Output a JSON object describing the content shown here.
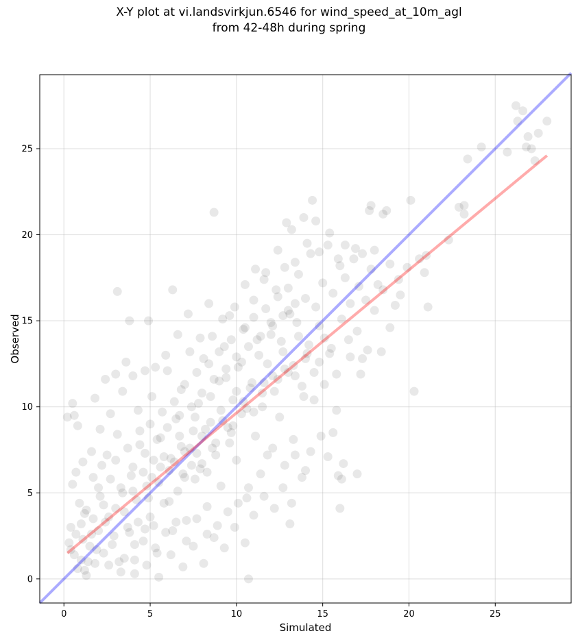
{
  "chart_data": {
    "type": "scatter",
    "title_line1": "X-Y plot at vi.landsvirkjun.6546 for wind_speed_at_10m_agl",
    "title_line2": "from 42-48h during spring",
    "xlabel": "Simulated",
    "ylabel": "Observed",
    "xlim": [
      -1.4,
      29.4
    ],
    "ylim": [
      -1.4,
      29.3
    ],
    "xticks": [
      0,
      5,
      10,
      15,
      20,
      25
    ],
    "yticks": [
      0,
      5,
      10,
      15,
      20,
      25
    ],
    "grid": true,
    "colors": {
      "points": "#000000",
      "identity_line": "#0000ff",
      "fit_line": "#ff0000",
      "grid": "#b0b0b0"
    },
    "reference_lines": [
      {
        "role": "identity",
        "x": [
          -1.4,
          29.4
        ],
        "y": [
          -1.4,
          29.4
        ],
        "color": "#0000ff"
      },
      {
        "role": "regression",
        "x": [
          0.2,
          28
        ],
        "y": [
          1.5,
          24.6
        ],
        "color": "#ff0000"
      }
    ],
    "points": [
      [
        0.2,
        9.4
      ],
      [
        0.5,
        10.2
      ],
      [
        0.6,
        9.5
      ],
      [
        3.1,
        16.7
      ],
      [
        3.8,
        15.0
      ],
      [
        8.7,
        21.3
      ],
      [
        10.7,
        0.0
      ],
      [
        14.4,
        22.0
      ],
      [
        16.0,
        4.1
      ],
      [
        17.0,
        6.1
      ],
      [
        20.3,
        10.9
      ],
      [
        16.2,
        6.7
      ],
      [
        15.6,
        8.5
      ],
      [
        15.8,
        9.8
      ],
      [
        13.1,
        3.2
      ],
      [
        26.2,
        27.5
      ],
      [
        26.6,
        27.2
      ],
      [
        26.3,
        26.6
      ],
      [
        26.9,
        25.7
      ],
      [
        27.5,
        25.9
      ],
      [
        28.0,
        26.6
      ],
      [
        26.8,
        25.1
      ],
      [
        27.1,
        25.0
      ],
      [
        27.3,
        24.3
      ],
      [
        25.7,
        24.8
      ],
      [
        24.2,
        25.1
      ],
      [
        23.4,
        24.4
      ],
      [
        23.2,
        21.7
      ],
      [
        22.9,
        21.6
      ],
      [
        23.2,
        21.2
      ],
      [
        22.3,
        19.7
      ],
      [
        20.1,
        22.0
      ],
      [
        21.1,
        15.8
      ],
      [
        20.9,
        17.8
      ],
      [
        18.7,
        21.4
      ],
      [
        18.5,
        21.2
      ],
      [
        17.8,
        21.7
      ],
      [
        17.7,
        21.4
      ],
      [
        19.5,
        16.5
      ],
      [
        19.2,
        15.9
      ],
      [
        18.9,
        14.6
      ],
      [
        18.4,
        13.2
      ],
      [
        18.0,
        19.1
      ],
      [
        17.3,
        18.9
      ],
      [
        16.9,
        19.2
      ],
      [
        16.3,
        19.4
      ],
      [
        15.9,
        18.6
      ],
      [
        15.4,
        20.1
      ],
      [
        13.9,
        21.0
      ],
      [
        14.6,
        20.8
      ],
      [
        14.1,
        19.5
      ],
      [
        0.3,
        2.1
      ],
      [
        0.6,
        1.4
      ],
      [
        0.4,
        3.0
      ],
      [
        0.8,
        0.6
      ],
      [
        1.1,
        2.3
      ],
      [
        1.4,
        1.0
      ],
      [
        1.2,
        3.8
      ],
      [
        0.9,
        4.4
      ],
      [
        0.5,
        5.5
      ],
      [
        0.7,
        6.2
      ],
      [
        1.3,
        0.2
      ],
      [
        1.6,
        2.6
      ],
      [
        1.9,
        1.7
      ],
      [
        2.1,
        4.8
      ],
      [
        1.7,
        5.9
      ],
      [
        2.4,
        3.3
      ],
      [
        2.6,
        0.8
      ],
      [
        2.2,
        6.6
      ],
      [
        2.8,
        2.0
      ],
      [
        3.0,
        4.1
      ],
      [
        2.5,
        7.2
      ],
      [
        3.3,
        5.3
      ],
      [
        3.5,
        1.2
      ],
      [
        3.1,
        8.4
      ],
      [
        3.7,
        3.0
      ],
      [
        3.9,
        6.0
      ],
      [
        4.1,
        0.3
      ],
      [
        4.2,
        4.6
      ],
      [
        4.4,
        7.8
      ],
      [
        4.6,
        2.2
      ],
      [
        4.8,
        5.4
      ],
      [
        4.3,
        9.8
      ],
      [
        5.0,
        3.6
      ],
      [
        5.2,
        6.9
      ],
      [
        5.4,
        1.5
      ],
      [
        5.1,
        10.6
      ],
      [
        5.6,
        8.2
      ],
      [
        5.8,
        4.4
      ],
      [
        6.0,
        12.1
      ],
      [
        6.1,
        6.3
      ],
      [
        6.3,
        2.8
      ],
      [
        6.5,
        9.3
      ],
      [
        6.6,
        5.1
      ],
      [
        6.8,
        11.0
      ],
      [
        7.0,
        7.4
      ],
      [
        7.1,
        3.4
      ],
      [
        7.3,
        13.2
      ],
      [
        7.5,
        8.6
      ],
      [
        7.6,
        5.8
      ],
      [
        7.8,
        10.2
      ],
      [
        8.0,
        6.7
      ],
      [
        8.1,
        12.8
      ],
      [
        8.3,
        4.2
      ],
      [
        8.5,
        9.1
      ],
      [
        8.6,
        14.1
      ],
      [
        8.8,
        7.9
      ],
      [
        9.0,
        11.5
      ],
      [
        9.1,
        5.4
      ],
      [
        9.3,
        13.5
      ],
      [
        9.5,
        8.8
      ],
      [
        9.6,
        15.3
      ],
      [
        9.8,
        10.4
      ],
      [
        10.0,
        6.9
      ],
      [
        10.1,
        12.3
      ],
      [
        10.3,
        9.6
      ],
      [
        10.5,
        14.6
      ],
      [
        10.6,
        4.7
      ],
      [
        10.8,
        11.1
      ],
      [
        11.0,
        16.2
      ],
      [
        11.1,
        8.3
      ],
      [
        11.3,
        13.0
      ],
      [
        11.5,
        10.0
      ],
      [
        11.6,
        17.4
      ],
      [
        11.8,
        7.2
      ],
      [
        12.0,
        14.2
      ],
      [
        12.1,
        11.8
      ],
      [
        12.3,
        16.8
      ],
      [
        12.5,
        9.4
      ],
      [
        12.6,
        13.8
      ],
      [
        12.8,
        18.1
      ],
      [
        13.0,
        12.0
      ],
      [
        13.1,
        15.4
      ],
      [
        13.3,
        8.1
      ],
      [
        13.5,
        14.9
      ],
      [
        13.6,
        17.7
      ],
      [
        13.8,
        11.2
      ],
      [
        14.0,
        16.3
      ],
      [
        14.1,
        13.1
      ],
      [
        14.3,
        18.9
      ],
      [
        14.5,
        10.4
      ],
      [
        14.6,
        15.8
      ],
      [
        14.8,
        12.6
      ],
      [
        15.0,
        17.2
      ],
      [
        15.1,
        14.0
      ],
      [
        15.3,
        19.4
      ],
      [
        15.5,
        13.4
      ],
      [
        15.6,
        16.6
      ],
      [
        15.8,
        11.9
      ],
      [
        16.0,
        18.2
      ],
      [
        16.1,
        15.1
      ],
      [
        16.3,
        17.5
      ],
      [
        16.5,
        13.9
      ],
      [
        16.6,
        16.0
      ],
      [
        16.8,
        18.6
      ],
      [
        17.0,
        14.4
      ],
      [
        17.1,
        17.0
      ],
      [
        17.3,
        12.8
      ],
      [
        17.5,
        16.2
      ],
      [
        17.6,
        13.3
      ],
      [
        17.8,
        18.0
      ],
      [
        18.0,
        15.6
      ],
      [
        18.2,
        17.1
      ],
      [
        18.5,
        16.8
      ],
      [
        18.9,
        18.3
      ],
      [
        19.4,
        17.4
      ],
      [
        19.9,
        18.1
      ],
      [
        20.6,
        18.6
      ],
      [
        21.0,
        18.8
      ],
      [
        17.2,
        11.9
      ],
      [
        16.6,
        12.9
      ],
      [
        1.0,
        1.1
      ],
      [
        1.2,
        0.5
      ],
      [
        1.5,
        1.9
      ],
      [
        1.8,
        0.9
      ],
      [
        2.0,
        2.8
      ],
      [
        2.3,
        1.5
      ],
      [
        2.6,
        3.6
      ],
      [
        2.9,
        2.5
      ],
      [
        3.2,
        1.0
      ],
      [
        3.5,
        3.9
      ],
      [
        3.8,
        2.7
      ],
      [
        4.0,
        5.1
      ],
      [
        4.3,
        3.3
      ],
      [
        4.6,
        6.2
      ],
      [
        4.9,
        4.7
      ],
      [
        5.2,
        3.1
      ],
      [
        5.5,
        5.6
      ],
      [
        5.8,
        7.1
      ],
      [
        6.1,
        4.5
      ],
      [
        6.4,
        6.8
      ],
      [
        6.7,
        8.3
      ],
      [
        7.0,
        5.9
      ],
      [
        7.3,
        7.6
      ],
      [
        7.6,
        9.4
      ],
      [
        7.9,
        6.4
      ],
      [
        8.2,
        8.7
      ],
      [
        8.5,
        10.6
      ],
      [
        8.8,
        7.2
      ],
      [
        9.1,
        9.8
      ],
      [
        9.4,
        11.7
      ],
      [
        9.7,
        8.5
      ],
      [
        10.0,
        10.9
      ],
      [
        10.3,
        12.6
      ],
      [
        10.6,
        9.9
      ],
      [
        10.9,
        11.4
      ],
      [
        11.2,
        13.9
      ],
      [
        11.5,
        10.8
      ],
      [
        11.8,
        12.5
      ],
      [
        12.1,
        14.7
      ],
      [
        12.4,
        11.6
      ],
      [
        12.7,
        13.2
      ],
      [
        13.0,
        15.6
      ],
      [
        13.3,
        12.4
      ],
      [
        13.6,
        14.1
      ],
      [
        13.9,
        10.6
      ],
      [
        14.2,
        13.6
      ],
      [
        14.5,
        12.0
      ],
      [
        14.8,
        14.7
      ],
      [
        15.1,
        11.3
      ],
      [
        15.4,
        13.1
      ],
      [
        2.7,
        9.6
      ],
      [
        3.4,
        10.9
      ],
      [
        4.0,
        11.8
      ],
      [
        4.7,
        12.1
      ],
      [
        5.3,
        12.3
      ],
      [
        2.1,
        8.7
      ],
      [
        1.6,
        7.4
      ],
      [
        1.1,
        6.8
      ],
      [
        0.8,
        8.9
      ],
      [
        3.0,
        11.9
      ],
      [
        5.9,
        13.0
      ],
      [
        6.6,
        14.2
      ],
      [
        7.2,
        15.4
      ],
      [
        7.9,
        14.0
      ],
      [
        8.4,
        16.0
      ],
      [
        9.2,
        15.1
      ],
      [
        9.9,
        15.8
      ],
      [
        10.5,
        17.1
      ],
      [
        11.1,
        18.0
      ],
      [
        11.7,
        17.8
      ],
      [
        12.4,
        19.1
      ],
      [
        12.9,
        20.7
      ],
      [
        13.4,
        18.4
      ],
      [
        14.8,
        19.0
      ],
      [
        13.2,
        20.3
      ],
      [
        6.3,
        16.8
      ],
      [
        4.9,
        15.0
      ],
      [
        3.6,
        12.6
      ],
      [
        2.4,
        11.6
      ],
      [
        1.8,
        10.5
      ],
      [
        3.3,
        0.4
      ],
      [
        4.1,
        1.1
      ],
      [
        4.8,
        0.8
      ],
      [
        5.5,
        0.1
      ],
      [
        6.2,
        1.4
      ],
      [
        6.9,
        0.7
      ],
      [
        7.5,
        1.9
      ],
      [
        8.1,
        0.9
      ],
      [
        8.7,
        2.4
      ],
      [
        9.3,
        1.8
      ],
      [
        9.9,
        3.0
      ],
      [
        10.5,
        2.1
      ],
      [
        11.0,
        3.7
      ],
      [
        11.6,
        4.8
      ],
      [
        12.2,
        4.1
      ],
      [
        12.7,
        5.3
      ],
      [
        13.2,
        4.4
      ],
      [
        13.8,
        5.9
      ],
      [
        14.3,
        7.4
      ],
      [
        14.9,
        8.3
      ],
      [
        15.3,
        7.1
      ],
      [
        15.9,
        6.0
      ],
      [
        16.1,
        5.8
      ],
      [
        14.0,
        6.3
      ],
      [
        13.4,
        7.2
      ],
      [
        12.8,
        6.6
      ],
      [
        12.1,
        7.6
      ],
      [
        11.4,
        6.1
      ],
      [
        10.7,
        5.3
      ],
      [
        10.1,
        4.4
      ],
      [
        9.5,
        3.9
      ],
      [
        8.9,
        3.1
      ],
      [
        8.3,
        2.6
      ],
      [
        7.7,
        3.5
      ],
      [
        7.1,
        2.2
      ],
      [
        6.5,
        3.3
      ],
      [
        5.9,
        2.7
      ],
      [
        5.3,
        1.8
      ],
      [
        4.7,
        2.9
      ],
      [
        4.1,
        2.0
      ],
      [
        0.4,
        1.7
      ],
      [
        0.7,
        2.6
      ],
      [
        1.0,
        3.2
      ],
      [
        1.3,
        4.0
      ],
      [
        1.7,
        3.5
      ],
      [
        2.0,
        5.3
      ],
      [
        2.3,
        4.3
      ],
      [
        2.7,
        5.8
      ],
      [
        3.0,
        6.9
      ],
      [
        3.4,
        5.0
      ],
      [
        3.7,
        7.6
      ],
      [
        4.0,
        6.5
      ],
      [
        4.4,
        8.6
      ],
      [
        4.7,
        7.3
      ],
      [
        5.0,
        9.0
      ],
      [
        5.4,
        8.1
      ],
      [
        5.7,
        9.7
      ],
      [
        6.0,
        8.8
      ],
      [
        6.4,
        10.3
      ],
      [
        6.7,
        9.5
      ],
      [
        7.0,
        11.3
      ],
      [
        7.4,
        10.0
      ],
      [
        7.7,
        12.0
      ],
      [
        8.0,
        10.8
      ],
      [
        8.4,
        12.5
      ],
      [
        8.7,
        11.6
      ],
      [
        9.0,
        13.2
      ],
      [
        9.4,
        12.2
      ],
      [
        9.7,
        13.9
      ],
      [
        10.0,
        12.9
      ],
      [
        10.4,
        14.5
      ],
      [
        10.7,
        13.5
      ],
      [
        11.0,
        15.2
      ],
      [
        11.4,
        14.1
      ],
      [
        11.7,
        15.7
      ],
      [
        12.0,
        14.9
      ],
      [
        12.4,
        16.4
      ],
      [
        12.7,
        15.3
      ],
      [
        13.0,
        16.9
      ],
      [
        13.4,
        16.0
      ],
      [
        5.1,
        5.9
      ],
      [
        5.6,
        6.5
      ],
      [
        6.2,
        7.0
      ],
      [
        6.8,
        7.7
      ],
      [
        7.4,
        6.6
      ],
      [
        8.0,
        8.3
      ],
      [
        8.6,
        7.6
      ],
      [
        9.2,
        9.2
      ],
      [
        9.8,
        8.9
      ],
      [
        10.4,
        10.3
      ],
      [
        11.0,
        9.7
      ],
      [
        11.6,
        11.4
      ],
      [
        12.2,
        10.9
      ],
      [
        12.8,
        12.2
      ],
      [
        13.4,
        11.8
      ],
      [
        14.0,
        12.8
      ],
      [
        6.9,
        6.1
      ],
      [
        7.7,
        7.3
      ],
      [
        8.3,
        6.2
      ],
      [
        9.6,
        7.9
      ]
    ]
  }
}
